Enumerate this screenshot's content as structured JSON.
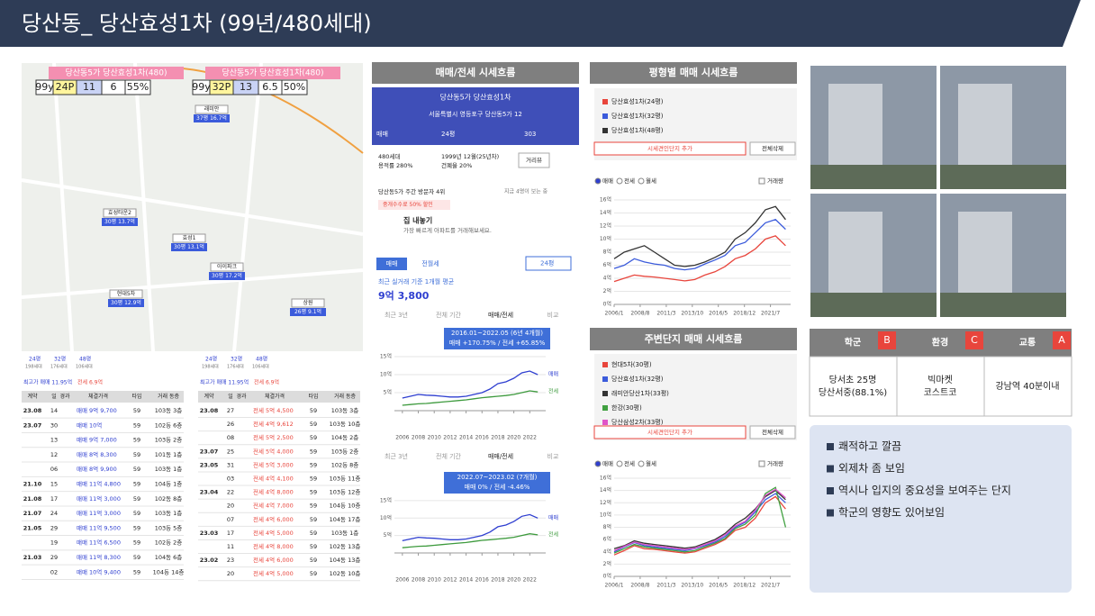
{
  "header": {
    "title": "당산동_ 당산효성1차 (99년/480세대)"
  },
  "map": {
    "overlay": [
      {
        "name": "당산동5가 당산효성1차(480)",
        "cells": [
          "99y",
          "24P",
          "11",
          "6",
          "55%"
        ]
      },
      {
        "name": "당산동5가 당산효성1차(480)",
        "cells": [
          "99y",
          "32P",
          "13",
          "6.5",
          "50%"
        ]
      }
    ],
    "markers": [
      [
        "래미안",
        "37평 16.7억"
      ],
      [
        "효성타운2",
        "30평 13.7억"
      ],
      [
        "효성1",
        "30평 13.1억"
      ],
      [
        "아이파크",
        "30평 17.2억"
      ],
      [
        "현대5차",
        "30평 12.9억"
      ],
      [
        "상원",
        "26평 9.1억"
      ]
    ]
  },
  "deals": {
    "sizes": [
      [
        "24평",
        "198세대"
      ],
      [
        "32평",
        "176세대"
      ],
      [
        "48평",
        "106세대"
      ]
    ],
    "best": [
      "최고가 매매 11.95억",
      "전세 6.9억"
    ],
    "columns": [
      "계약",
      "일",
      "경과",
      "체결가격",
      "타입",
      "거래 동층"
    ],
    "sale": [
      [
        "23.08",
        "14",
        "",
        "매매 9억 9,700",
        "59",
        "103동 3층"
      ],
      [
        "23.07",
        "30",
        "",
        "매매 10억",
        "59",
        "102동 6층"
      ],
      [
        "",
        "13",
        "",
        "매매 9억 7,000",
        "59",
        "103동 2층"
      ],
      [
        "",
        "12",
        "",
        "매매 8억 8,300",
        "59",
        "101동 1층"
      ],
      [
        "",
        "06",
        "",
        "매매 8억 9,900",
        "59",
        "103동 1층"
      ],
      [
        "21.10",
        "15",
        "",
        "매매 11억 4,800",
        "59",
        "104동 1층"
      ],
      [
        "21.08",
        "17",
        "",
        "매매 11억 3,000",
        "59",
        "102동 8층"
      ],
      [
        "21.07",
        "24",
        "",
        "매매 11억 3,000",
        "59",
        "103동 1층"
      ],
      [
        "21.05",
        "29",
        "",
        "매매 11억 9,500",
        "59",
        "103동 5층"
      ],
      [
        "",
        "19",
        "",
        "매매 11억 6,500",
        "59",
        "102동 2층"
      ],
      [
        "21.03",
        "29",
        "",
        "매매 11억 8,300",
        "59",
        "104동 6층"
      ],
      [
        "",
        "02",
        "",
        "매매 10억 9,400",
        "59",
        "104동 14층"
      ]
    ],
    "rent": [
      [
        "23.08",
        "27",
        "",
        "전세 5억 4,500",
        "59",
        "103동 3층"
      ],
      [
        "",
        "26",
        "",
        "전세 4억 9,612",
        "59",
        "103동 10층"
      ],
      [
        "",
        "08",
        "",
        "전세 5억 2,500",
        "59",
        "104동 2층"
      ],
      [
        "23.07",
        "25",
        "",
        "전세 5억 4,000",
        "59",
        "103동 2층"
      ],
      [
        "23.05",
        "31",
        "",
        "전세 5억 3,000",
        "59",
        "102동 8층"
      ],
      [
        "",
        "03",
        "",
        "전세 4억 4,100",
        "59",
        "103동 11층"
      ],
      [
        "23.04",
        "22",
        "",
        "전세 4억 8,000",
        "59",
        "103동 12층"
      ],
      [
        "",
        "20",
        "",
        "전세 4억 7,000",
        "59",
        "104동 10층"
      ],
      [
        "",
        "07",
        "",
        "전세 4억 6,000",
        "59",
        "104동 17층"
      ],
      [
        "23.03",
        "17",
        "",
        "전세 4억 5,000",
        "59",
        "103동 1층"
      ],
      [
        "",
        "11",
        "",
        "전세 4억 8,000",
        "59",
        "102동 13층"
      ],
      [
        "23.02",
        "23",
        "",
        "전세 4억 6,000",
        "59",
        "104동 13층"
      ],
      [
        "",
        "20",
        "",
        "전세 4억 5,000",
        "59",
        "102동 10층"
      ]
    ]
  },
  "panels": [
    "매매/전세 시세흐름",
    "평형별 매매 시세흐름",
    "주변단지 매매 시세흐름"
  ],
  "app": {
    "name": "당산동5가 당산효성1차",
    "address": "서울특별시 영등포구 당산동5가 12",
    "deal": "매매",
    "size": "24평",
    "comments": "303",
    "info": [
      "480세대",
      "용적률 280%",
      "1999년 12월(25년차)",
      "건폐율 20%"
    ],
    "street": "거리뷰",
    "visitors": "당산동5가 주간 방문자 4위",
    "watching": "지금 4명이 보는 중",
    "promo": "중개수수료 50% 할인",
    "sell": "집 내놓기",
    "sell_sub": "가장 빠르게 아파트를 거래해보세요.",
    "tabs": [
      "매매",
      "전월세"
    ],
    "avg_label": "최근 실거래 기준 1개월 평균",
    "avg": "9억 3,800",
    "periods": [
      "최근 3년",
      "전체 기간",
      "매매/전세",
      "비교"
    ]
  },
  "controls": {
    "add": "시세견인단지 추가",
    "clear": "전체삭제",
    "radios": [
      "매매",
      "전세",
      "월세"
    ],
    "volume": "거래량"
  },
  "chart_data": [
    {
      "type": "line",
      "legend": "top",
      "x": [
        2006,
        2007,
        2008,
        2009,
        2010,
        2011,
        2012,
        2013,
        2014,
        2015,
        2016,
        2017,
        2018,
        2019,
        2020,
        2021,
        2022,
        2023
      ],
      "xlim": [
        2006,
        2023.5
      ],
      "xticks": [
        {
          "value": 2006,
          "label": "2006/1"
        },
        {
          "value": 2008.58,
          "label": "2008/8"
        },
        {
          "value": 2011.17,
          "label": "2011/3"
        },
        {
          "value": 2013.75,
          "label": "2013/10"
        },
        {
          "value": 2016.33,
          "label": "2016/5"
        },
        {
          "value": 2018.92,
          "label": "2018/12"
        },
        {
          "value": 2021.5,
          "label": "2021/7"
        }
      ],
      "ylim": [
        0,
        16
      ],
      "yticks": [
        {
          "value": 0,
          "label": "0억"
        },
        {
          "value": 2,
          "label": "2억"
        },
        {
          "value": 4,
          "label": "4억"
        },
        {
          "value": 6,
          "label": "6억"
        },
        {
          "value": 8,
          "label": "8억"
        },
        {
          "value": 10,
          "label": "10억"
        },
        {
          "value": 12,
          "label": "12억"
        },
        {
          "value": 14,
          "label": "14억"
        },
        {
          "value": 16,
          "label": "16억"
        }
      ],
      "series": [
        {
          "name": "당산효성1차(24평)",
          "color": "#e8453c",
          "values": [
            3.5,
            4,
            4.5,
            4.3,
            4.2,
            4,
            3.8,
            3.6,
            3.8,
            4.5,
            5,
            5.8,
            7,
            7.5,
            8.5,
            10,
            10.5,
            9
          ]
        },
        {
          "name": "당산효성1차(32평)",
          "color": "#3b5bdb",
          "values": [
            5.5,
            6,
            7,
            6.5,
            6.2,
            6,
            5.5,
            5.3,
            5.5,
            6.2,
            6.8,
            7.5,
            9,
            9.5,
            11,
            12.5,
            13,
            11.5
          ]
        },
        {
          "name": "당산효성1차(48평)",
          "color": "#333333",
          "values": [
            7,
            8,
            8.5,
            9,
            8,
            7,
            6,
            5.8,
            6,
            6.5,
            7.2,
            8,
            10,
            11,
            12.5,
            14.5,
            15,
            13
          ]
        }
      ]
    },
    {
      "type": "line",
      "legend": "top",
      "x": [
        2006,
        2007,
        2008,
        2009,
        2010,
        2011,
        2012,
        2013,
        2014,
        2015,
        2016,
        2017,
        2018,
        2019,
        2020,
        2021,
        2022,
        2023
      ],
      "xlim": [
        2006,
        2023.5
      ],
      "xticks": [
        {
          "value": 2006,
          "label": "2006/1"
        },
        {
          "value": 2008.58,
          "label": "2008/8"
        },
        {
          "value": 2011.17,
          "label": "2011/3"
        },
        {
          "value": 2013.75,
          "label": "2013/10"
        },
        {
          "value": 2016.33,
          "label": "2016/5"
        },
        {
          "value": 2018.92,
          "label": "2018/12"
        },
        {
          "value": 2021.5,
          "label": "2021/7"
        }
      ],
      "ylim": [
        0,
        16
      ],
      "yticks": [
        {
          "value": 0,
          "label": "0억"
        },
        {
          "value": 2,
          "label": "2억"
        },
        {
          "value": 4,
          "label": "4억"
        },
        {
          "value": 6,
          "label": "6억"
        },
        {
          "value": 8,
          "label": "8억"
        },
        {
          "value": 10,
          "label": "10억"
        },
        {
          "value": 12,
          "label": "12억"
        },
        {
          "value": 14,
          "label": "14억"
        },
        {
          "value": 16,
          "label": "16억"
        }
      ],
      "series": [
        {
          "name": "현대5차(30평)",
          "color": "#e8453c",
          "values": [
            3.5,
            4.2,
            5,
            4.5,
            4.4,
            4.2,
            4,
            3.8,
            4,
            4.6,
            5.2,
            6,
            7.5,
            8,
            9.5,
            12,
            13,
            11
          ]
        },
        {
          "name": "당산효성1차(32평)",
          "color": "#3b5bdb",
          "values": [
            4,
            4.8,
            5.5,
            5,
            4.8,
            4.6,
            4.4,
            4.2,
            4.5,
            5,
            5.6,
            6.5,
            8,
            8.8,
            10.5,
            12.5,
            13.5,
            12
          ]
        },
        {
          "name": "래미안당산1차(33평)",
          "color": "#333333",
          "values": [
            4.5,
            5,
            5.8,
            5.4,
            5.2,
            5,
            4.8,
            4.6,
            4.8,
            5.4,
            6,
            7,
            8.5,
            9.5,
            11,
            13,
            14,
            12.5
          ]
        },
        {
          "name": "한강(30평)",
          "color": "#40a040",
          "values": [
            3.8,
            4.5,
            5.2,
            4.8,
            4.6,
            4.4,
            4.2,
            4,
            4.2,
            4.8,
            5.4,
            6.2,
            7.8,
            8.5,
            10,
            13.5,
            14.5,
            8
          ]
        },
        {
          "name": "당산삼성2차(33평)",
          "color": "#e055c8",
          "values": [
            4.2,
            4.9,
            5.6,
            5.2,
            5,
            4.8,
            4.6,
            4.4,
            4.6,
            5.2,
            5.8,
            6.8,
            8.2,
            9,
            10.8,
            13.2,
            14.2,
            12.8
          ]
        }
      ]
    },
    {
      "type": "line",
      "legend": "right",
      "x": [
        2006,
        2007,
        2008,
        2009,
        2010,
        2011,
        2012,
        2013,
        2014,
        2015,
        2016,
        2017,
        2018,
        2019,
        2020,
        2021,
        2022,
        2023
      ],
      "xlim": [
        2005,
        2024
      ],
      "xticks": [
        2006,
        2008,
        2010,
        2012,
        2014,
        2016,
        2018,
        2020,
        2022
      ],
      "ylim": [
        0,
        16
      ],
      "yticks": [
        {
          "value": 5,
          "label": "5억"
        },
        {
          "value": 10,
          "label": "10억"
        },
        {
          "value": 15,
          "label": "15억"
        }
      ],
      "annotations": [
        "2016.01~2022.05 (6년 4개월)",
        "매매 +170.75% / 전세 +65.85%"
      ],
      "series": [
        {
          "name": "매매",
          "color": "#2f3fd0",
          "values": [
            3.5,
            4,
            4.5,
            4.3,
            4.2,
            4,
            3.8,
            3.8,
            4,
            4.5,
            5,
            6,
            7.5,
            8,
            9,
            10.5,
            11,
            10
          ]
        },
        {
          "name": "전세",
          "color": "#3d9a3d",
          "values": [
            1.5,
            1.7,
            1.9,
            2,
            2.2,
            2.4,
            2.6,
            2.8,
            3,
            3.3,
            3.6,
            3.8,
            4,
            4.2,
            4.5,
            5,
            5.5,
            5.2
          ]
        }
      ]
    },
    {
      "type": "line",
      "legend": "right",
      "x": [
        2006,
        2007,
        2008,
        2009,
        2010,
        2011,
        2012,
        2013,
        2014,
        2015,
        2016,
        2017,
        2018,
        2019,
        2020,
        2021,
        2022,
        2023
      ],
      "xlim": [
        2005,
        2024
      ],
      "xticks": [
        2006,
        2008,
        2010,
        2012,
        2014,
        2016,
        2018,
        2020,
        2022
      ],
      "ylim": [
        0,
        16
      ],
      "yticks": [
        {
          "value": 5,
          "label": "5억"
        },
        {
          "value": 10,
          "label": "10억"
        },
        {
          "value": 15,
          "label": "15억"
        }
      ],
      "annotations": [
        "2022.07~2023.02 (7개월)",
        "매매 0% / 전세 -4.46%"
      ],
      "series": [
        {
          "name": "매매",
          "color": "#2f3fd0",
          "values": [
            3.5,
            4,
            4.5,
            4.3,
            4.2,
            4,
            3.8,
            3.8,
            4,
            4.5,
            5,
            6,
            7.5,
            8,
            9,
            10.5,
            11,
            10
          ]
        },
        {
          "name": "전세",
          "color": "#3d9a3d",
          "values": [
            1.5,
            1.7,
            1.9,
            2,
            2.2,
            2.4,
            2.6,
            2.8,
            3,
            3.3,
            3.6,
            3.8,
            4,
            4.2,
            4.5,
            5,
            5.5,
            5.2
          ]
        }
      ]
    }
  ],
  "features": {
    "columns": [
      [
        "학군",
        "B"
      ],
      [
        "환경",
        "C"
      ],
      [
        "교통",
        "A"
      ]
    ],
    "cells": [
      [
        "당서초 25명",
        "당산서중(88.1%)"
      ],
      [
        "빅마켓",
        "코스트코"
      ],
      [
        "강남역 40분이내"
      ]
    ]
  },
  "notes": [
    "쾌적하고 깔끔",
    "외제차 좀 보임",
    "역시나 입지의 중요성을 보여주는 단지",
    "학군의 영향도 있어보임"
  ]
}
